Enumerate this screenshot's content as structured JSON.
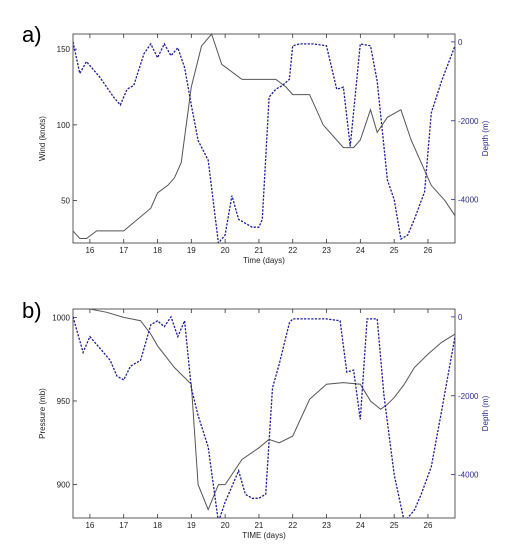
{
  "chart_data": [
    {
      "type": "line",
      "panel_label": "a)",
      "xlabel": "Time (days)",
      "ylabel_left": "Wind (knots)",
      "ylabel_right": "Depth (m)",
      "xlim": [
        15.5,
        26.8
      ],
      "ylim_left": [
        22,
        160
      ],
      "ylim_right": [
        -5100,
        200
      ],
      "x_ticks": [
        "16",
        "17",
        "18",
        "19",
        "20",
        "21",
        "22",
        "23",
        "24",
        "25",
        "26"
      ],
      "y_ticks_left": [
        "50",
        "100",
        "150"
      ],
      "y_ticks_right": [
        "0",
        "-2000",
        "-4000"
      ],
      "series": [
        {
          "axis": "left",
          "color": "#555555",
          "x": [
            15.5,
            15.7,
            15.9,
            16.2,
            17.0,
            17.8,
            18.0,
            18.3,
            18.5,
            18.7,
            19.0,
            19.3,
            19.6,
            19.9,
            20.5,
            21.0,
            21.5,
            21.8,
            22.0,
            22.5,
            22.9,
            23.5,
            23.8,
            24.0,
            24.3,
            24.5,
            24.8,
            25.2,
            25.5,
            25.8,
            26.1,
            26.5,
            26.8
          ],
          "y": [
            30,
            25,
            25,
            30,
            30,
            45,
            55,
            60,
            65,
            75,
            125,
            152,
            160,
            140,
            130,
            130,
            130,
            125,
            120,
            120,
            100,
            85,
            85,
            90,
            110,
            95,
            105,
            110,
            90,
            75,
            60,
            50,
            40
          ]
        },
        {
          "axis": "right",
          "color": "#1c1c9c",
          "x": [
            15.5,
            15.7,
            15.9,
            16.3,
            16.7,
            16.9,
            17.1,
            17.3,
            17.6,
            17.8,
            18.0,
            18.2,
            18.4,
            18.6,
            18.8,
            19.0,
            19.2,
            19.5,
            19.8,
            20.0,
            20.2,
            20.4,
            20.6,
            20.8,
            21.0,
            21.1,
            21.3,
            21.5,
            21.7,
            21.9,
            22.0,
            22.2,
            22.6,
            23.0,
            23.3,
            23.5,
            23.7,
            24.0,
            24.3,
            24.5,
            24.8,
            25.0,
            25.2,
            25.4,
            25.6,
            25.9,
            26.1,
            26.4,
            26.8
          ],
          "y": [
            0,
            -800,
            -500,
            -900,
            -1400,
            -1600,
            -1200,
            -1100,
            -300,
            -50,
            -400,
            -50,
            -350,
            -150,
            -650,
            -1600,
            -2500,
            -3000,
            -5100,
            -4900,
            -3900,
            -4500,
            -4600,
            -4700,
            -4700,
            -4500,
            -1400,
            -1200,
            -1100,
            -950,
            -100,
            -50,
            -50,
            -100,
            -1200,
            -1150,
            -2650,
            -50,
            -100,
            -1000,
            -3500,
            -4000,
            -5000,
            -4900,
            -4500,
            -3800,
            -1800,
            -1000,
            -100
          ]
        }
      ]
    },
    {
      "type": "line",
      "panel_label": "b)",
      "xlabel": "TIME (days)",
      "ylabel_left": "Pressure (mb)",
      "ylabel_right": "Depth (m)",
      "xlim": [
        15.5,
        26.8
      ],
      "ylim_left": [
        880,
        1005
      ],
      "ylim_right": [
        -5100,
        200
      ],
      "x_ticks": [
        "16",
        "17",
        "18",
        "19",
        "20",
        "21",
        "22",
        "23",
        "24",
        "25",
        "26"
      ],
      "y_ticks_left": [
        "1000",
        "950",
        "900"
      ],
      "y_ticks_right": [
        "0",
        "-2000",
        "-4000"
      ],
      "series": [
        {
          "axis": "left",
          "color": "#555555",
          "x": [
            15.5,
            16.0,
            16.5,
            17.0,
            17.5,
            17.8,
            18.0,
            18.5,
            19.0,
            19.2,
            19.5,
            19.8,
            20.0,
            20.5,
            21.0,
            21.3,
            21.6,
            22.0,
            22.5,
            23.0,
            23.5,
            24.0,
            24.3,
            24.6,
            24.8,
            25.0,
            25.3,
            25.6,
            26.0,
            26.4,
            26.8
          ],
          "y": [
            1005,
            1005,
            1003,
            1000,
            998,
            990,
            983,
            970,
            960,
            900,
            885,
            900,
            900,
            915,
            922,
            927,
            925,
            929,
            951,
            960,
            961,
            960,
            950,
            945,
            948,
            952,
            960,
            970,
            978,
            985,
            990
          ]
        },
        {
          "axis": "right",
          "color": "#1c1c9c",
          "x": [
            15.5,
            15.8,
            16.0,
            16.3,
            16.6,
            16.8,
            17.0,
            17.2,
            17.5,
            17.8,
            18.0,
            18.2,
            18.4,
            18.6,
            18.8,
            19.0,
            19.2,
            19.5,
            19.8,
            20.0,
            20.2,
            20.4,
            20.6,
            20.8,
            21.0,
            21.2,
            21.4,
            21.6,
            21.9,
            22.0,
            22.3,
            22.6,
            23.0,
            23.4,
            23.6,
            23.8,
            24.0,
            24.2,
            24.5,
            24.7,
            25.0,
            25.3,
            25.6,
            25.8,
            26.1,
            26.4,
            26.8
          ],
          "y": [
            0,
            -900,
            -500,
            -800,
            -1100,
            -1500,
            -1600,
            -1250,
            -1100,
            -200,
            -100,
            -250,
            0,
            -500,
            -100,
            -1800,
            -2500,
            -3300,
            -5200,
            -4700,
            -4300,
            -3900,
            -4500,
            -4600,
            -4600,
            -4500,
            -1800,
            -1200,
            -150,
            -50,
            -50,
            -50,
            -50,
            -100,
            -1400,
            -1350,
            -2600,
            -50,
            -50,
            -2000,
            -4000,
            -5200,
            -4900,
            -4500,
            -3800,
            -2400,
            -500
          ]
        }
      ]
    }
  ]
}
